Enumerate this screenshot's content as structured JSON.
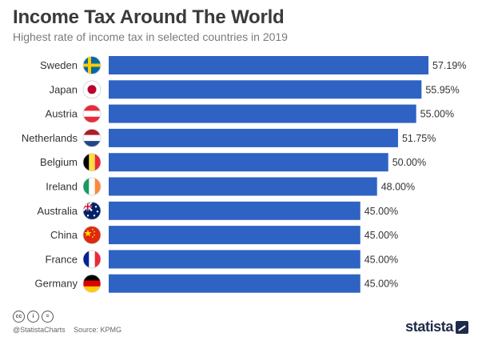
{
  "header": {
    "title": "Income Tax Around The World",
    "subtitle": "Highest rate of income tax in selected countries in 2019"
  },
  "footer": {
    "handle": "@StatistaCharts",
    "source": "Source: KPMG",
    "brand": "statista",
    "license_icons": [
      "cc",
      "i",
      "="
    ]
  },
  "colors": {
    "bar": "#2e63c3",
    "title": "#3a3a3a",
    "label": "#333333"
  },
  "chart_data": {
    "type": "bar",
    "orientation": "horizontal",
    "unit": "%",
    "xlim": [
      0,
      60
    ],
    "grid": false,
    "categories": [
      "Sweden",
      "Japan",
      "Austria",
      "Netherlands",
      "Belgium",
      "Ireland",
      "Australia",
      "China",
      "France",
      "Germany"
    ],
    "values": [
      57.19,
      55.95,
      55.0,
      51.75,
      50.0,
      48.0,
      45.0,
      45.0,
      45.0,
      45.0
    ],
    "value_labels": [
      "57.19%",
      "55.95%",
      "55.00%",
      "51.75%",
      "50.00%",
      "48.00%",
      "45.00%",
      "45.00%",
      "45.00%",
      "45.00%"
    ],
    "flags": [
      "sweden-flag-icon",
      "japan-flag-icon",
      "austria-flag-icon",
      "netherlands-flag-icon",
      "belgium-flag-icon",
      "ireland-flag-icon",
      "australia-flag-icon",
      "china-flag-icon",
      "france-flag-icon",
      "germany-flag-icon"
    ]
  }
}
